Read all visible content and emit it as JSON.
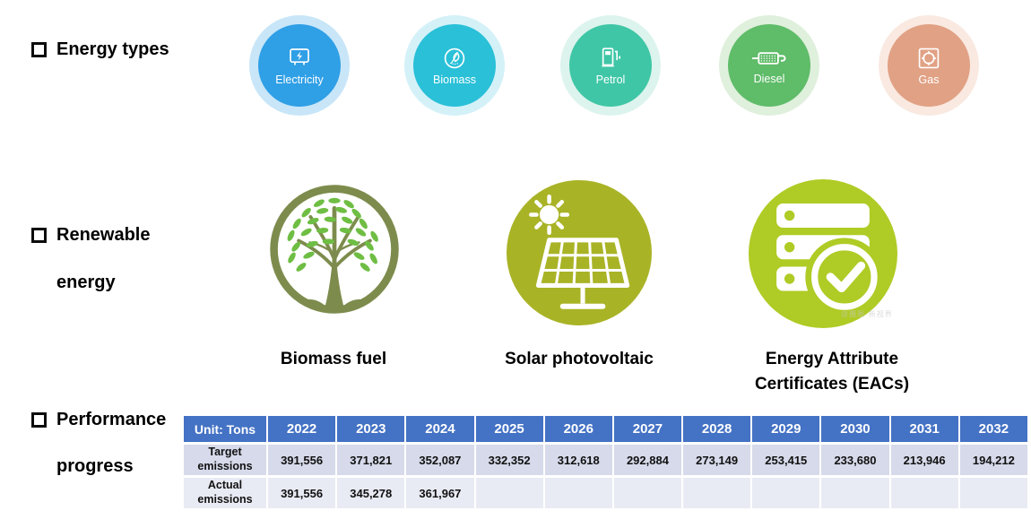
{
  "sections": {
    "energy_types": {
      "title": "Energy types",
      "items": [
        {
          "label": "Electricity",
          "color": "#2F9FE6",
          "halo": "#C8E6F8"
        },
        {
          "label": "Biomass",
          "color": "#29C0D8",
          "halo": "#D4F1F8"
        },
        {
          "label": "Petrol",
          "color": "#3FC6A6",
          "halo": "#DCF4ED"
        },
        {
          "label": "Diesel",
          "color": "#5FBC69",
          "halo": "#DFF0DC"
        },
        {
          "label": "Gas",
          "color": "#E1A184",
          "halo": "#F9E9E1"
        }
      ]
    },
    "renewable": {
      "title_line1": "Renewable",
      "title_line2": "energy",
      "items": [
        {
          "label": "Biomass fuel",
          "ring_color": "#7D8C4D",
          "leaf_color": "#6FBE44"
        },
        {
          "label": "Solar photovoltaic",
          "color": "#A9B326"
        },
        {
          "label": "Energy Attribute Certificates (EACs)",
          "color": "#AFCB25"
        }
      ],
      "watermark": "@摄图·新视界"
    },
    "performance": {
      "title_line1": "Performance",
      "title_line2": "progress",
      "table": {
        "unit_header": "Unit: Tons",
        "header_bg": "#4472C4",
        "header_text_color": "#FFFFFF",
        "years": [
          "2022",
          "2023",
          "2024",
          "2025",
          "2026",
          "2027",
          "2028",
          "2029",
          "2030",
          "2031",
          "2032"
        ],
        "rows": [
          {
            "label": "Target emissions",
            "bg": "#D6DAEA",
            "values": [
              "391,556",
              "371,821",
              "352,087",
              "332,352",
              "312,618",
              "292,884",
              "273,149",
              "253,415",
              "233,680",
              "213,946",
              "194,212"
            ]
          },
          {
            "label": "Actual emissions",
            "bg": "#E9EBF4",
            "values": [
              "391,556",
              "345,278",
              "361,967",
              "",
              "",
              "",
              "",
              "",
              "",
              "",
              ""
            ]
          }
        ]
      }
    }
  },
  "chart_data": {
    "type": "table",
    "title": "Performance progress",
    "unit": "Tons",
    "categories": [
      2022,
      2023,
      2024,
      2025,
      2026,
      2027,
      2028,
      2029,
      2030,
      2031,
      2032
    ],
    "series": [
      {
        "name": "Target emissions",
        "values": [
          391556,
          371821,
          352087,
          332352,
          312618,
          292884,
          273149,
          253415,
          233680,
          213946,
          194212
        ]
      },
      {
        "name": "Actual emissions",
        "values": [
          391556,
          345278,
          361967,
          null,
          null,
          null,
          null,
          null,
          null,
          null,
          null
        ]
      }
    ]
  }
}
